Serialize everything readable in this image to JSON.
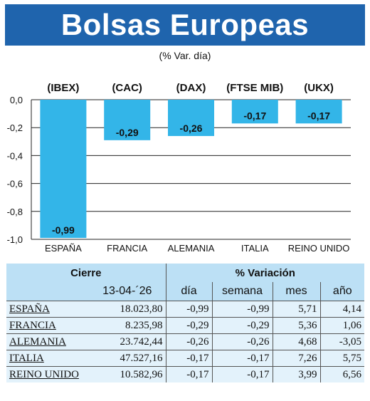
{
  "title": "Bolsas Europeas",
  "subtitle": "(% Var. día)",
  "colors": {
    "banner": "#1f64ad",
    "bar": "#33b5e8",
    "table_header": "#bce0f5",
    "table_body": "#e3f2fb"
  },
  "chart_data": {
    "type": "bar",
    "index_labels": [
      "(IBEX)",
      "(CAC)",
      "(DAX)",
      "(FTSE MIB)",
      "(UKX)"
    ],
    "categories": [
      "ESPAÑA",
      "FRANCIA",
      "ALEMANIA",
      "ITALIA",
      "REINO UNIDO"
    ],
    "values": [
      -0.99,
      -0.29,
      -0.26,
      -0.17,
      -0.17
    ],
    "value_labels": [
      "-0,99",
      "-0,29",
      "-0,26",
      "-0,17",
      "-0,17"
    ],
    "yticks": [
      0.0,
      -0.2,
      -0.4,
      -0.6,
      -0.8,
      -1.0
    ],
    "ytick_labels": [
      "0,0",
      "-0,2",
      "-0,4",
      "-0,6",
      "-0,8",
      "-1,0"
    ],
    "ylim": [
      -1.0,
      0.0
    ],
    "grid": true
  },
  "table": {
    "header_cierre": "Cierre",
    "header_variacion": "% Variación",
    "date": "13-04-´26",
    "columns": [
      "día",
      "semana",
      "mes",
      "año"
    ],
    "rows": [
      {
        "country": "ESPAÑA",
        "cierre": "18.023,80",
        "dia": "-0,99",
        "semana": "-0,99",
        "mes": "5,71",
        "anio": "4,14"
      },
      {
        "country": "FRANCIA",
        "cierre": "8.235,98",
        "dia": "-0,29",
        "semana": "-0,29",
        "mes": "5,36",
        "anio": "1,06"
      },
      {
        "country": "ALEMANIA",
        "cierre": "23.742,44",
        "dia": "-0,26",
        "semana": "-0,26",
        "mes": "4,68",
        "anio": "-3,05"
      },
      {
        "country": "ITALIA",
        "cierre": "47.527,16",
        "dia": "-0,17",
        "semana": "-0,17",
        "mes": "7,26",
        "anio": "5,75"
      },
      {
        "country": "REINO UNIDO",
        "cierre": "10.582,96",
        "dia": "-0,17",
        "semana": "-0,17",
        "mes": "3,99",
        "anio": "6,56"
      }
    ]
  }
}
